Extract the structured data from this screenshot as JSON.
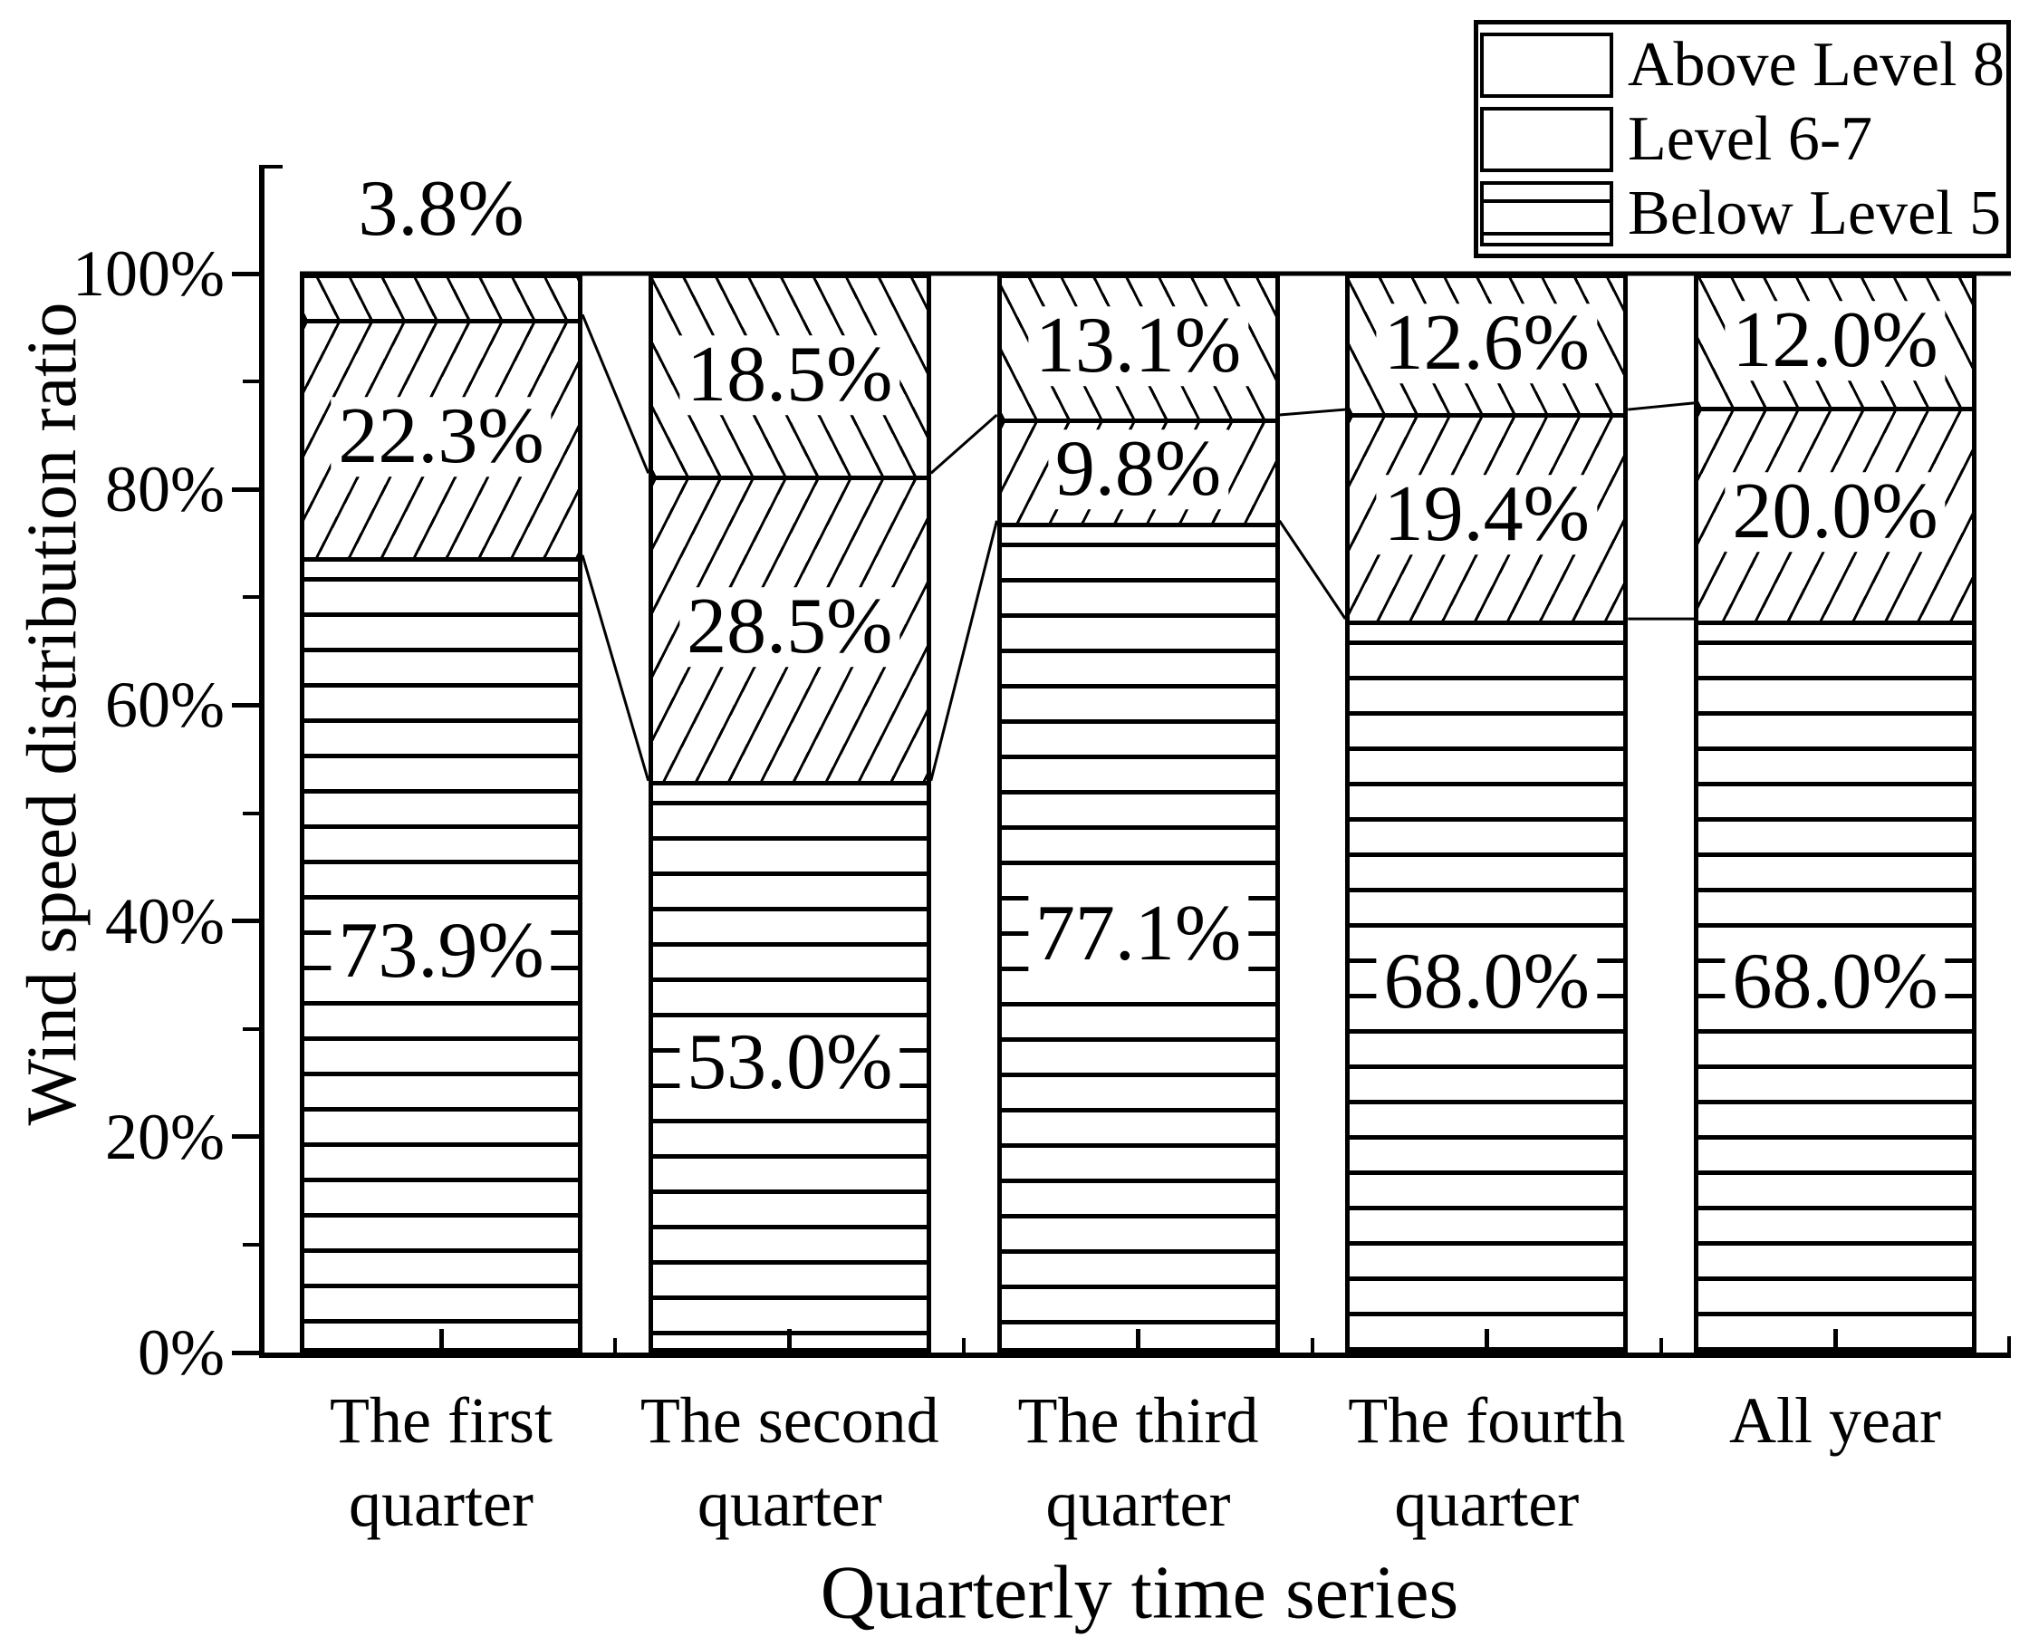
{
  "y_axis": {
    "title": "Wind speed distribution ratio",
    "major_ticks": [
      {
        "value": 0,
        "label": "0%"
      },
      {
        "value": 20,
        "label": "20%"
      },
      {
        "value": 40,
        "label": "40%"
      },
      {
        "value": 60,
        "label": "60%"
      },
      {
        "value": 80,
        "label": "80%"
      },
      {
        "value": 100,
        "label": "100%"
      }
    ],
    "minor_tick_values": [
      10,
      30,
      50,
      70,
      90
    ]
  },
  "x_axis": {
    "title": "Quarterly time series",
    "categories": [
      {
        "label": "The first quarter",
        "lines": [
          "The first",
          "quarter"
        ]
      },
      {
        "label": "The second quarter",
        "lines": [
          "The second",
          "quarter"
        ]
      },
      {
        "label": "The third quarter",
        "lines": [
          "The third",
          "quarter"
        ]
      },
      {
        "label": "The fourth quarter",
        "lines": [
          "The fourth",
          "quarter"
        ]
      },
      {
        "label": "All year",
        "lines": [
          "All year"
        ]
      }
    ]
  },
  "legend": {
    "items": [
      {
        "label": "Above Level 8",
        "hatch": "backslash"
      },
      {
        "label": "Level 6-7",
        "hatch": "slash"
      },
      {
        "label": "Below Level 5",
        "hatch": "hlines"
      }
    ]
  },
  "chart_data": {
    "type": "bar",
    "stacked": true,
    "unit": "%",
    "title": "",
    "xlabel": "Quarterly time series",
    "ylabel": "Wind speed distribution ratio",
    "ylim": [
      0,
      100
    ],
    "grid": false,
    "legend_position": "top-right",
    "categories": [
      "The first quarter",
      "The second quarter",
      "The third quarter",
      "The fourth quarter",
      "All year"
    ],
    "series": [
      {
        "name": "Below Level 5",
        "hatch": "hlines",
        "values": [
          73.9,
          53.0,
          77.1,
          68.0,
          68.0
        ],
        "labels": [
          "73.9%",
          "53.0%",
          "77.1%",
          "68.0%",
          "68.0%"
        ]
      },
      {
        "name": "Level 6-7",
        "hatch": "slash",
        "values": [
          22.3,
          28.5,
          9.8,
          19.4,
          20.0
        ],
        "labels": [
          "22.3%",
          "28.5%",
          "9.8%",
          "19.4%",
          "20.0%"
        ]
      },
      {
        "name": "Above Level 8",
        "hatch": "backslash",
        "values": [
          3.8,
          18.5,
          13.1,
          12.6,
          12.0
        ],
        "labels": [
          "3.8%",
          "18.5%",
          "13.1%",
          "12.6%",
          "12.0%"
        ]
      }
    ],
    "annotations": {
      "connector_lines": true,
      "top_line_value": 100
    }
  },
  "colors": {
    "foreground": "#000000",
    "background": "#ffffff"
  }
}
